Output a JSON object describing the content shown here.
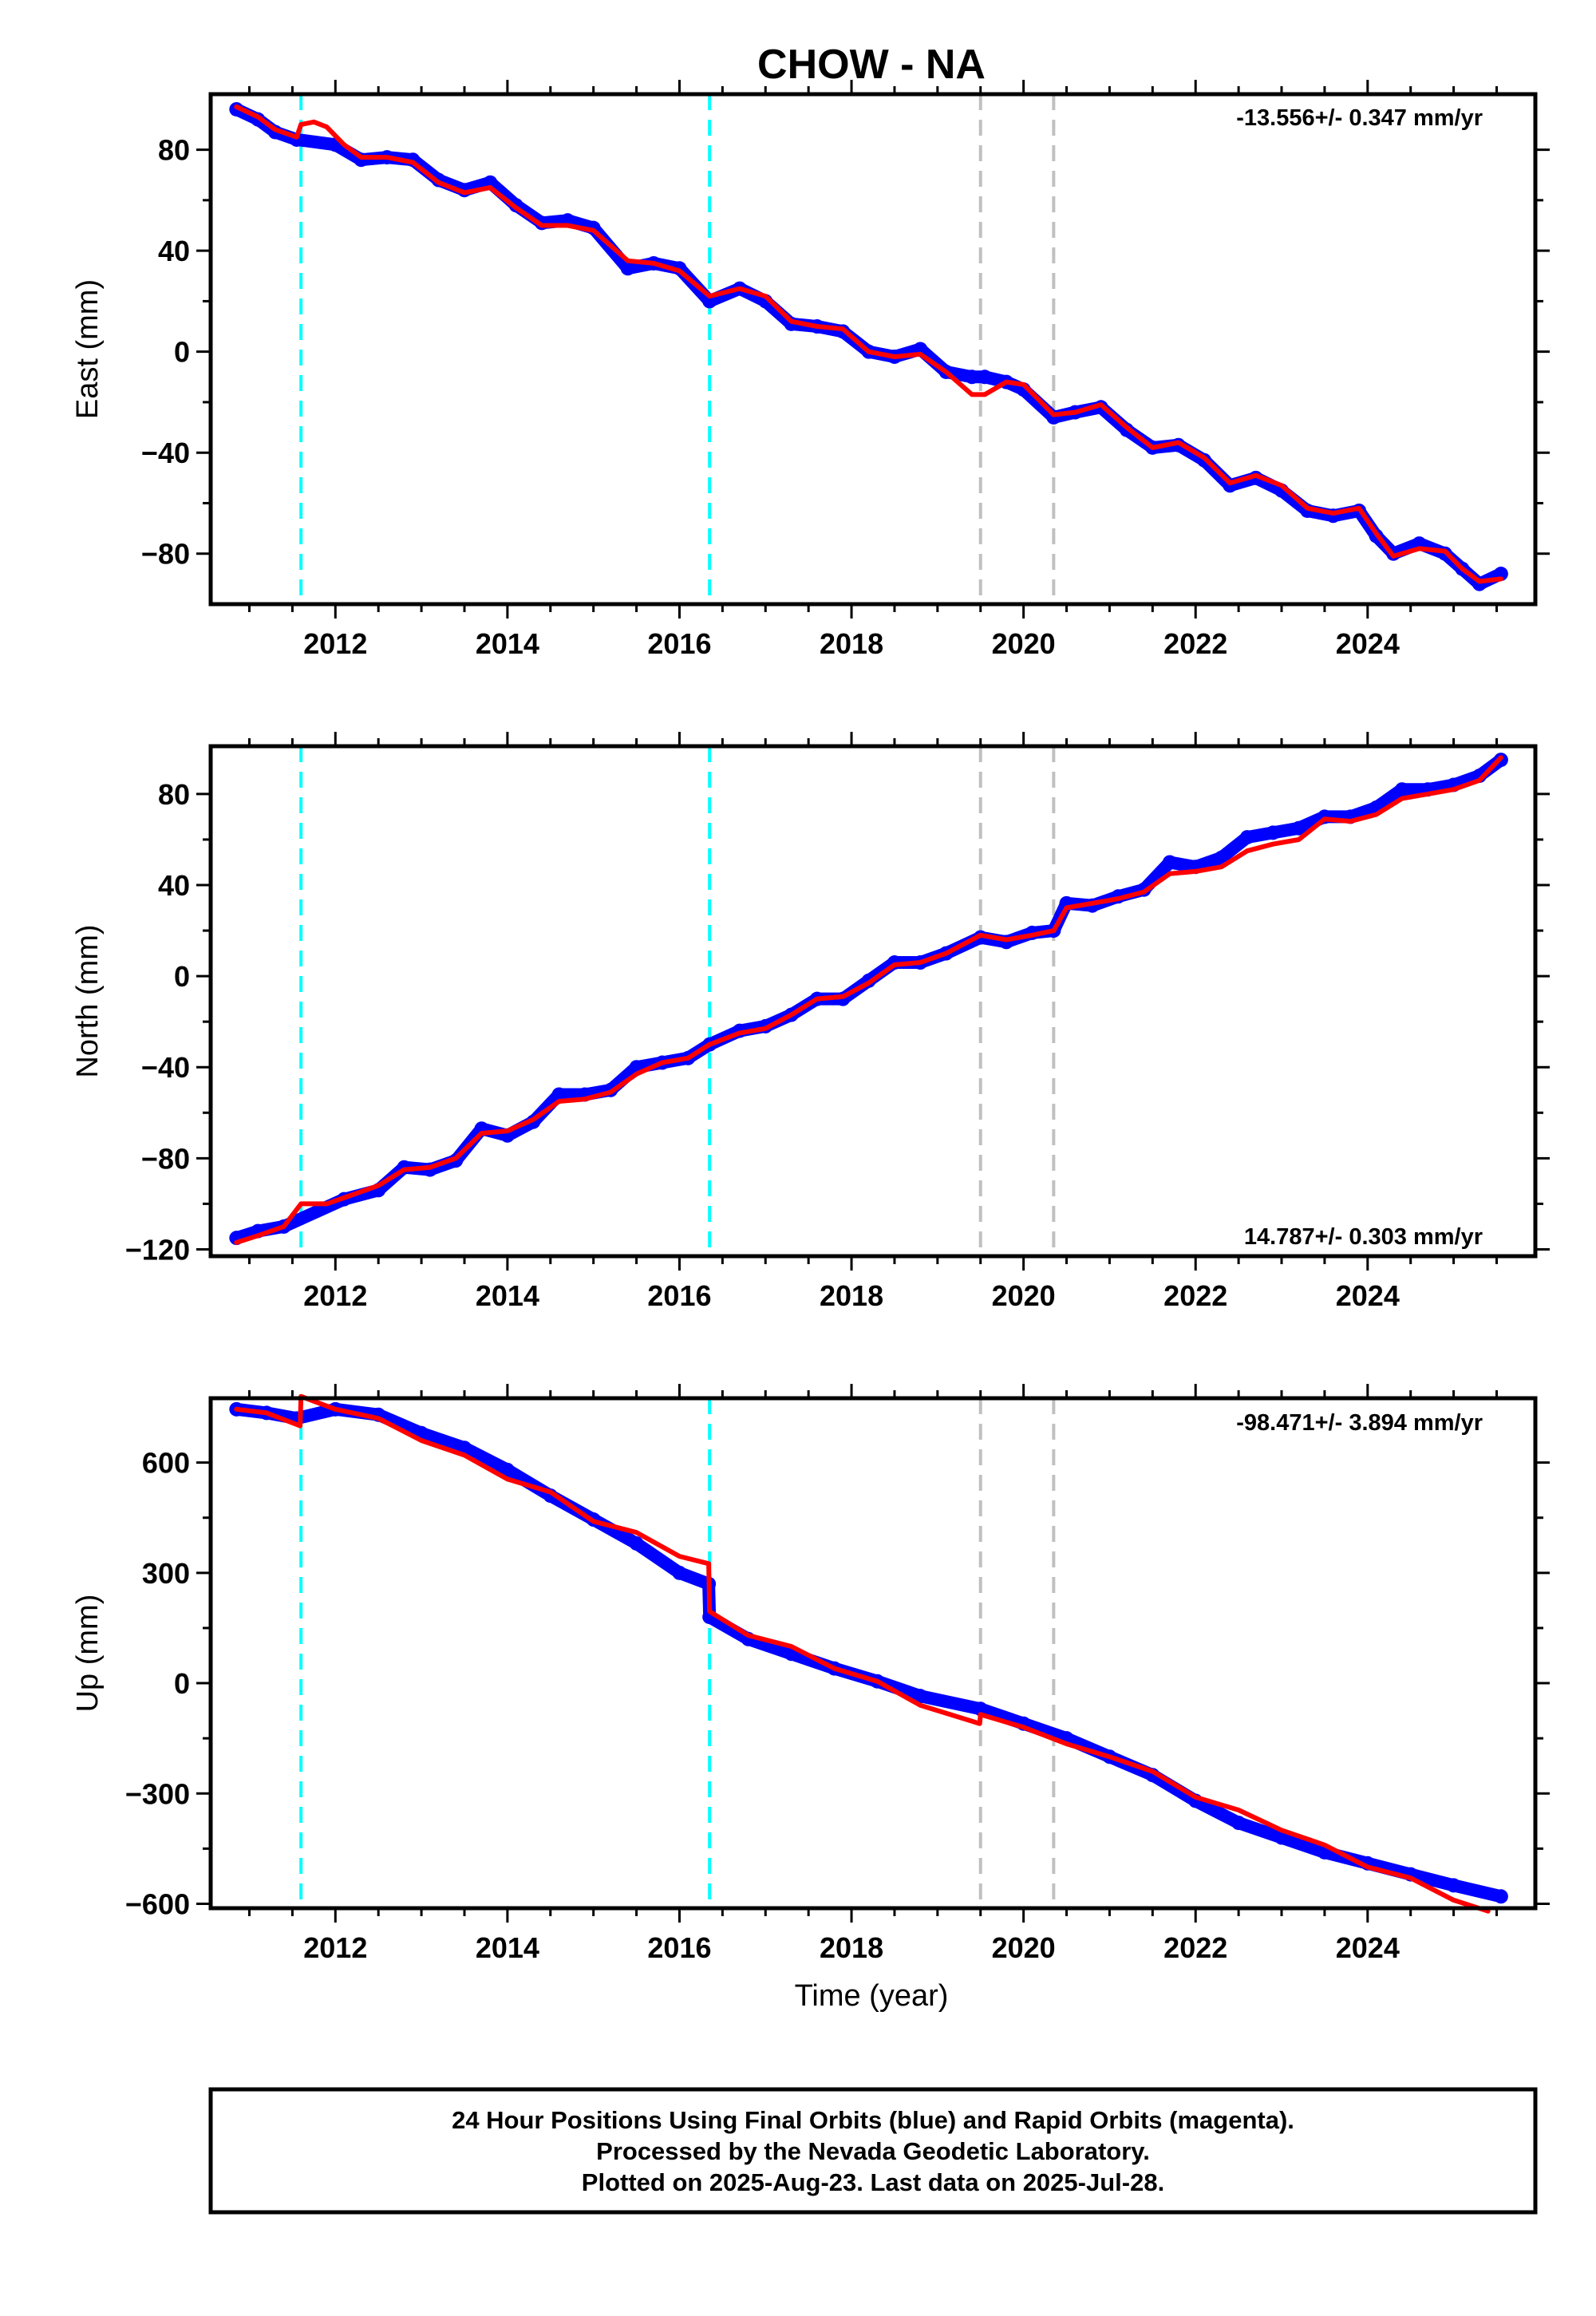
{
  "title": "CHOW - NA",
  "xlabel": "Time (year)",
  "footer": {
    "line1": "24 Hour Positions Using Final Orbits (blue) and Rapid Orbits (magenta).",
    "line2": "Processed by the Nevada Geodetic Laboratory.",
    "line3": "Plotted on 2025-Aug-23. Last data on 2025-Jul-28."
  },
  "colors": {
    "data": "#0000ff",
    "model": "#ff0000",
    "offset_equipment": "#00ffff",
    "offset_other": "#c0c0c0",
    "frame": "#000000"
  },
  "chart_data": [
    {
      "type": "scatter",
      "id": "east",
      "ylabel": "East (mm)",
      "rate_text": "-13.556+/- 0.347 mm/yr",
      "xlim": [
        2010.55,
        2025.95
      ],
      "ylim": [
        -100,
        102
      ],
      "xticks": [
        2012,
        2014,
        2016,
        2018,
        2020,
        2022,
        2024
      ],
      "yticks": [
        -80,
        -40,
        0,
        40,
        80
      ],
      "offsets_cyan": [
        2011.6,
        2016.35
      ],
      "offsets_gray": [
        2019.5,
        2020.35
      ],
      "model": [
        [
          2010.85,
          97
        ],
        [
          2011.1,
          93
        ],
        [
          2011.3,
          88
        ],
        [
          2011.55,
          85
        ],
        [
          2011.6,
          90
        ],
        [
          2011.75,
          91
        ],
        [
          2011.9,
          89
        ],
        [
          2012.1,
          82
        ],
        [
          2012.3,
          77
        ],
        [
          2012.6,
          77
        ],
        [
          2012.9,
          75
        ],
        [
          2013.2,
          67
        ],
        [
          2013.5,
          63
        ],
        [
          2013.8,
          65
        ],
        [
          2014.1,
          57
        ],
        [
          2014.4,
          50
        ],
        [
          2014.7,
          50
        ],
        [
          2015.0,
          48
        ],
        [
          2015.4,
          36
        ],
        [
          2015.7,
          35
        ],
        [
          2016.0,
          32
        ],
        [
          2016.35,
          22
        ],
        [
          2016.7,
          25
        ],
        [
          2017.0,
          22
        ],
        [
          2017.3,
          12
        ],
        [
          2017.6,
          10
        ],
        [
          2017.9,
          9
        ],
        [
          2018.2,
          0
        ],
        [
          2018.5,
          -2
        ],
        [
          2018.8,
          -1
        ],
        [
          2019.1,
          -8
        ],
        [
          2019.4,
          -17
        ],
        [
          2019.55,
          -17
        ],
        [
          2019.8,
          -12
        ],
        [
          2020.0,
          -13
        ],
        [
          2020.35,
          -25
        ],
        [
          2020.6,
          -24
        ],
        [
          2020.9,
          -21
        ],
        [
          2021.2,
          -30
        ],
        [
          2021.5,
          -38
        ],
        [
          2021.8,
          -36
        ],
        [
          2022.1,
          -42
        ],
        [
          2022.4,
          -52
        ],
        [
          2022.7,
          -49
        ],
        [
          2023.0,
          -53
        ],
        [
          2023.3,
          -62
        ],
        [
          2023.6,
          -64
        ],
        [
          2023.9,
          -62
        ],
        [
          2024.1,
          -72
        ],
        [
          2024.3,
          -81
        ],
        [
          2024.6,
          -78
        ],
        [
          2024.9,
          -79
        ],
        [
          2025.1,
          -86
        ],
        [
          2025.3,
          -91
        ],
        [
          2025.55,
          -90
        ]
      ],
      "data": [
        [
          2010.85,
          96
        ],
        [
          2011.1,
          92
        ],
        [
          2011.3,
          87
        ],
        [
          2011.55,
          84
        ],
        [
          2012.0,
          82
        ],
        [
          2012.3,
          76
        ],
        [
          2012.6,
          77
        ],
        [
          2012.9,
          76
        ],
        [
          2013.2,
          68
        ],
        [
          2013.5,
          64
        ],
        [
          2013.8,
          67
        ],
        [
          2014.1,
          58
        ],
        [
          2014.4,
          51
        ],
        [
          2014.7,
          52
        ],
        [
          2015.0,
          49
        ],
        [
          2015.4,
          33
        ],
        [
          2015.7,
          35
        ],
        [
          2016.0,
          33
        ],
        [
          2016.35,
          20
        ],
        [
          2016.7,
          25
        ],
        [
          2017.0,
          20
        ],
        [
          2017.3,
          11
        ],
        [
          2017.6,
          10
        ],
        [
          2017.9,
          8
        ],
        [
          2018.2,
          0
        ],
        [
          2018.5,
          -2
        ],
        [
          2018.8,
          1
        ],
        [
          2019.1,
          -8
        ],
        [
          2019.4,
          -10
        ],
        [
          2019.55,
          -10
        ],
        [
          2019.8,
          -12
        ],
        [
          2020.0,
          -15
        ],
        [
          2020.35,
          -26
        ],
        [
          2020.6,
          -24
        ],
        [
          2020.9,
          -22
        ],
        [
          2021.2,
          -31
        ],
        [
          2021.5,
          -38
        ],
        [
          2021.8,
          -37
        ],
        [
          2022.1,
          -43
        ],
        [
          2022.4,
          -53
        ],
        [
          2022.7,
          -50
        ],
        [
          2023.0,
          -55
        ],
        [
          2023.3,
          -63
        ],
        [
          2023.6,
          -65
        ],
        [
          2023.9,
          -63
        ],
        [
          2024.1,
          -73
        ],
        [
          2024.3,
          -80
        ],
        [
          2024.6,
          -76
        ],
        [
          2024.9,
          -80
        ],
        [
          2025.1,
          -86
        ],
        [
          2025.3,
          -92
        ],
        [
          2025.55,
          -88
        ]
      ]
    },
    {
      "type": "scatter",
      "id": "north",
      "ylabel": "North (mm)",
      "rate_text": "14.787+/- 0.303 mm/yr",
      "xlim": [
        2010.55,
        2025.95
      ],
      "ylim": [
        -123,
        101
      ],
      "xticks": [
        2012,
        2014,
        2016,
        2018,
        2020,
        2022,
        2024
      ],
      "yticks": [
        -120,
        -80,
        -40,
        0,
        40,
        80
      ],
      "offsets_cyan": [
        2011.6,
        2016.35
      ],
      "offsets_gray": [
        2019.5,
        2020.35
      ],
      "model": [
        [
          2010.85,
          -117
        ],
        [
          2011.1,
          -114
        ],
        [
          2011.4,
          -110
        ],
        [
          2011.6,
          -100
        ],
        [
          2011.9,
          -100
        ],
        [
          2012.2,
          -96
        ],
        [
          2012.5,
          -92
        ],
        [
          2012.8,
          -85
        ],
        [
          2013.1,
          -84
        ],
        [
          2013.4,
          -80
        ],
        [
          2013.7,
          -69
        ],
        [
          2014.0,
          -68
        ],
        [
          2014.3,
          -63
        ],
        [
          2014.6,
          -55
        ],
        [
          2014.9,
          -54
        ],
        [
          2015.2,
          -51
        ],
        [
          2015.5,
          -43
        ],
        [
          2015.8,
          -38
        ],
        [
          2016.1,
          -36
        ],
        [
          2016.35,
          -30
        ],
        [
          2016.7,
          -25
        ],
        [
          2017.0,
          -23
        ],
        [
          2017.3,
          -17
        ],
        [
          2017.6,
          -10
        ],
        [
          2017.9,
          -9
        ],
        [
          2018.2,
          -3
        ],
        [
          2018.5,
          5
        ],
        [
          2018.8,
          6
        ],
        [
          2019.1,
          10
        ],
        [
          2019.5,
          18
        ],
        [
          2019.8,
          16
        ],
        [
          2020.1,
          18
        ],
        [
          2020.35,
          20
        ],
        [
          2020.5,
          30
        ],
        [
          2020.8,
          32
        ],
        [
          2021.1,
          34
        ],
        [
          2021.4,
          37
        ],
        [
          2021.7,
          45
        ],
        [
          2022.0,
          46
        ],
        [
          2022.3,
          48
        ],
        [
          2022.6,
          55
        ],
        [
          2022.9,
          58
        ],
        [
          2023.2,
          60
        ],
        [
          2023.5,
          69
        ],
        [
          2023.8,
          68
        ],
        [
          2024.1,
          71
        ],
        [
          2024.4,
          78
        ],
        [
          2024.7,
          80
        ],
        [
          2025.0,
          82
        ],
        [
          2025.3,
          86
        ],
        [
          2025.55,
          96
        ]
      ],
      "data": [
        [
          2010.85,
          -115
        ],
        [
          2011.1,
          -112
        ],
        [
          2011.4,
          -110
        ],
        [
          2012.1,
          -98
        ],
        [
          2012.5,
          -94
        ],
        [
          2012.8,
          -84
        ],
        [
          2013.1,
          -85
        ],
        [
          2013.4,
          -81
        ],
        [
          2013.7,
          -67
        ],
        [
          2014.0,
          -70
        ],
        [
          2014.3,
          -64
        ],
        [
          2014.6,
          -52
        ],
        [
          2014.9,
          -52
        ],
        [
          2015.2,
          -50
        ],
        [
          2015.5,
          -40
        ],
        [
          2015.8,
          -38
        ],
        [
          2016.1,
          -36
        ],
        [
          2016.35,
          -30
        ],
        [
          2016.7,
          -24
        ],
        [
          2017.0,
          -22
        ],
        [
          2017.3,
          -17
        ],
        [
          2017.6,
          -10
        ],
        [
          2017.9,
          -10
        ],
        [
          2018.2,
          -2
        ],
        [
          2018.5,
          6
        ],
        [
          2018.8,
          6
        ],
        [
          2019.1,
          10
        ],
        [
          2019.5,
          17
        ],
        [
          2019.8,
          15
        ],
        [
          2020.1,
          19
        ],
        [
          2020.35,
          20
        ],
        [
          2020.5,
          32
        ],
        [
          2020.8,
          31
        ],
        [
          2021.1,
          35
        ],
        [
          2021.4,
          38
        ],
        [
          2021.7,
          50
        ],
        [
          2022.0,
          48
        ],
        [
          2022.3,
          52
        ],
        [
          2022.6,
          61
        ],
        [
          2022.9,
          63
        ],
        [
          2023.2,
          65
        ],
        [
          2023.5,
          70
        ],
        [
          2023.8,
          70
        ],
        [
          2024.1,
          74
        ],
        [
          2024.4,
          82
        ],
        [
          2024.7,
          82
        ],
        [
          2025.0,
          84
        ],
        [
          2025.3,
          88
        ],
        [
          2025.55,
          95
        ]
      ]
    },
    {
      "type": "scatter",
      "id": "up",
      "ylabel": "Up (mm)",
      "rate_text": "-98.471+/- 3.894 mm/yr",
      "xlim": [
        2010.55,
        2025.95
      ],
      "ylim": [
        -612,
        775
      ],
      "xticks": [
        2012,
        2014,
        2016,
        2018,
        2020,
        2022,
        2024
      ],
      "yticks": [
        -600,
        -300,
        0,
        300,
        600
      ],
      "offsets_cyan": [
        2011.6,
        2016.35
      ],
      "offsets_gray": [
        2019.5,
        2020.35
      ],
      "model": [
        [
          2010.85,
          745
        ],
        [
          2011.2,
          735
        ],
        [
          2011.59,
          700
        ],
        [
          2011.6,
          780
        ],
        [
          2012.0,
          745
        ],
        [
          2012.5,
          720
        ],
        [
          2013.0,
          660
        ],
        [
          2013.5,
          620
        ],
        [
          2014.0,
          555
        ],
        [
          2014.5,
          520
        ],
        [
          2015.0,
          440
        ],
        [
          2015.5,
          410
        ],
        [
          2016.0,
          345
        ],
        [
          2016.34,
          325
        ],
        [
          2016.35,
          195
        ],
        [
          2016.8,
          130
        ],
        [
          2017.3,
          100
        ],
        [
          2017.8,
          40
        ],
        [
          2018.3,
          5
        ],
        [
          2018.8,
          -60
        ],
        [
          2019.49,
          -110
        ],
        [
          2019.5,
          -85
        ],
        [
          2020.0,
          -120
        ],
        [
          2020.5,
          -165
        ],
        [
          2021.0,
          -200
        ],
        [
          2021.5,
          -240
        ],
        [
          2022.0,
          -310
        ],
        [
          2022.5,
          -345
        ],
        [
          2023.0,
          -400
        ],
        [
          2023.5,
          -440
        ],
        [
          2024.0,
          -500
        ],
        [
          2024.5,
          -530
        ],
        [
          2025.0,
          -590
        ],
        [
          2025.4,
          -620
        ]
      ],
      "data": [
        [
          2010.85,
          745
        ],
        [
          2011.2,
          735
        ],
        [
          2011.55,
          720
        ],
        [
          2012.0,
          745
        ],
        [
          2012.5,
          730
        ],
        [
          2013.0,
          680
        ],
        [
          2013.5,
          640
        ],
        [
          2014.0,
          580
        ],
        [
          2014.5,
          510
        ],
        [
          2015.0,
          445
        ],
        [
          2015.5,
          380
        ],
        [
          2016.0,
          300
        ],
        [
          2016.34,
          270
        ],
        [
          2016.35,
          180
        ],
        [
          2016.8,
          120
        ],
        [
          2017.3,
          80
        ],
        [
          2017.8,
          40
        ],
        [
          2018.3,
          5
        ],
        [
          2018.8,
          -35
        ],
        [
          2019.5,
          -70
        ],
        [
          2020.0,
          -110
        ],
        [
          2020.5,
          -150
        ],
        [
          2021.0,
          -200
        ],
        [
          2021.5,
          -250
        ],
        [
          2022.0,
          -320
        ],
        [
          2022.5,
          -380
        ],
        [
          2023.0,
          -420
        ],
        [
          2023.5,
          -460
        ],
        [
          2024.0,
          -490
        ],
        [
          2024.5,
          -520
        ],
        [
          2025.0,
          -550
        ],
        [
          2025.55,
          -580
        ]
      ]
    }
  ]
}
